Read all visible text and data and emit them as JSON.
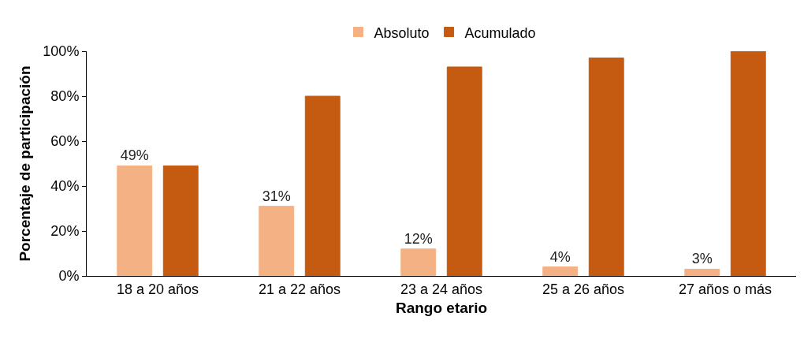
{
  "chart_data": {
    "type": "bar",
    "xlabel": "Rango etario",
    "ylabel": "Porcentaje de participación",
    "categories": [
      "18 a 20 años",
      "21 a 22 años",
      "23 a 24 años",
      "25 a 26 años",
      "27 años o más"
    ],
    "series": [
      {
        "name": "Absoluto",
        "color": "#f4b183",
        "values": [
          49,
          31,
          12,
          4,
          3
        ],
        "value_labels": [
          "49%",
          "31%",
          "12%",
          "4%",
          "3%"
        ]
      },
      {
        "name": "Acumulado",
        "color": "#c55a11",
        "values": [
          49,
          80,
          93,
          97,
          100
        ]
      }
    ],
    "ylim": [
      0,
      100
    ],
    "yticks": [
      {
        "value": 0,
        "label": "0%"
      },
      {
        "value": 20,
        "label": "20%"
      },
      {
        "value": 40,
        "label": "40%"
      },
      {
        "value": 60,
        "label": "60%"
      },
      {
        "value": 80,
        "label": "80%"
      },
      {
        "value": 100,
        "label": "100%"
      }
    ],
    "grid": false,
    "legend": "top"
  }
}
